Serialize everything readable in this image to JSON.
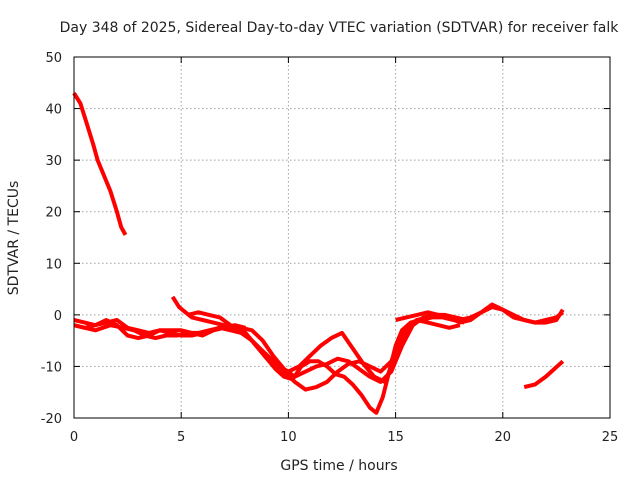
{
  "chart_data": {
    "type": "line",
    "title": "Day 348 of 2025, Sidereal Day-to-day VTEC variation (SDTVAR) for receiver falk",
    "xlabel": "GPS time / hours",
    "ylabel": "SDTVAR / TECUs",
    "xlim": [
      0,
      25
    ],
    "ylim": [
      -20,
      50
    ],
    "xticks": [
      "0",
      "5",
      "10",
      "15",
      "20",
      "25"
    ],
    "yticks": [
      "-20",
      "-10",
      "0",
      "10",
      "20",
      "30",
      "40",
      "50"
    ],
    "grid": true,
    "color": "#ff0000",
    "series": [
      {
        "name": "s1",
        "x": [
          0.0,
          0.3,
          0.6,
          0.9,
          1.1,
          1.4,
          1.7,
          2.0,
          2.2,
          2.4
        ],
        "y": [
          43,
          41,
          37,
          33,
          30,
          27,
          24,
          20,
          17,
          15.5
        ]
      },
      {
        "name": "s2",
        "x": [
          0.0,
          0.5,
          1.0,
          1.5,
          2.0,
          2.5,
          3.0,
          3.5,
          4.0,
          4.5,
          5.0,
          5.5,
          6.0,
          6.5,
          7.0,
          7.5,
          8.0
        ],
        "y": [
          -1,
          -1.5,
          -2,
          -1.5,
          -1,
          -2.5,
          -3,
          -3.5,
          -3,
          -3.5,
          -4,
          -4,
          -3.5,
          -3,
          -2.5,
          -2,
          -2.5
        ]
      },
      {
        "name": "s3",
        "x": [
          0.0,
          0.5,
          1.0,
          1.5,
          2.0,
          2.5,
          3.0,
          3.5,
          4.0,
          4.5,
          5.0,
          5.5,
          6.0,
          6.5,
          7.0
        ],
        "y": [
          -2,
          -2.5,
          -2,
          -1,
          -2,
          -4,
          -4.5,
          -4,
          -3,
          -3,
          -3,
          -3.5,
          -4,
          -3,
          -2
        ]
      },
      {
        "name": "s4",
        "x": [
          0.0,
          0.5,
          1.0,
          1.7,
          2.3,
          2.8,
          3.3,
          3.8,
          4.3,
          4.8,
          5.3,
          5.8,
          6.3,
          6.8,
          7.3,
          7.8,
          8.3,
          8.8,
          9.3,
          9.8,
          10.3,
          10.8,
          11.3,
          11.8,
          12.3,
          12.8,
          13.3,
          13.8,
          14.3,
          14.8,
          15.2,
          15.6,
          16.0,
          16.5,
          17.0,
          17.5,
          18.0
        ],
        "y": [
          -2,
          -2.5,
          -3,
          -2,
          -2.5,
          -3,
          -4,
          -4.5,
          -4,
          -4,
          -3.5,
          -3.5,
          -3,
          -2.5,
          -3,
          -3.5,
          -5,
          -7,
          -9,
          -11,
          -13,
          -14.5,
          -14,
          -13,
          -11,
          -9.5,
          -9,
          -10,
          -11,
          -9,
          -5,
          -2,
          -1,
          -1.5,
          -2,
          -2.5,
          -2
        ]
      },
      {
        "name": "s5",
        "x": [
          4.6,
          4.9,
          5.2,
          5.5,
          6.0,
          6.5,
          7.0,
          7.4,
          7.8,
          8.2,
          8.6,
          9.0,
          9.4,
          9.8,
          10.2,
          10.6,
          11.0,
          11.4,
          11.8,
          12.2,
          12.6,
          13.0,
          13.4,
          13.8,
          14.1,
          14.4,
          14.7,
          15.0,
          15.3,
          15.7,
          16.2,
          16.7,
          17.2,
          17.7,
          18.2
        ],
        "y": [
          3.5,
          1.5,
          0.5,
          -0.5,
          -1,
          -1.5,
          -2,
          -2.5,
          -3,
          -4.5,
          -6.5,
          -8.5,
          -10.5,
          -12,
          -12.5,
          -10,
          -9,
          -9,
          -10,
          -11.5,
          -12,
          -13.5,
          -15.5,
          -18,
          -19,
          -16,
          -11,
          -6,
          -3,
          -1.5,
          -1,
          -0.5,
          -0.5,
          -1,
          -1.5
        ]
      },
      {
        "name": "s6",
        "x": [
          5.3,
          5.8,
          6.3,
          6.8,
          7.3,
          7.8,
          8.3,
          8.8,
          9.3,
          9.8,
          10.3,
          10.8,
          11.3,
          11.8,
          12.3,
          12.8,
          13.3,
          13.8,
          14.3,
          14.8,
          15.3,
          15.8,
          16.3,
          16.8,
          17.3,
          17.8,
          18.3
        ],
        "y": [
          0,
          0.5,
          0,
          -0.5,
          -2,
          -2.5,
          -3,
          -5,
          -8,
          -10.5,
          -12,
          -11,
          -10,
          -9.5,
          -8.5,
          -9,
          -10.5,
          -12,
          -13,
          -11,
          -6,
          -2,
          -0.5,
          0,
          0,
          -0.5,
          -1
        ]
      },
      {
        "name": "s7",
        "x": [
          7.5,
          8.0,
          8.5,
          9.0,
          9.5,
          10.0,
          10.5,
          11.0,
          11.5,
          12.0,
          12.5,
          13.0,
          13.5,
          14.0,
          14.5,
          15.0,
          15.5,
          16.0,
          16.5,
          17.0,
          17.5,
          18.0,
          18.5,
          19.0,
          19.5,
          20.0,
          20.5,
          21.0,
          21.5,
          22.0,
          22.5,
          22.8
        ],
        "y": [
          -2,
          -3.5,
          -6,
          -8.5,
          -10,
          -11,
          -10,
          -8,
          -6,
          -4.5,
          -3.5,
          -6.5,
          -9.5,
          -12,
          -13,
          -8,
          -3,
          -1,
          -0.5,
          0,
          -0.5,
          -1.5,
          -1,
          0.5,
          2,
          1,
          -0.5,
          -1,
          -1.5,
          -1,
          -0.5,
          0.5
        ]
      },
      {
        "name": "s8",
        "x": [
          15.0,
          15.5,
          16.0,
          16.5,
          17.0,
          17.5,
          18.0,
          18.5,
          19.0,
          19.5,
          20.0,
          20.5,
          21.0,
          21.5,
          22.0,
          22.5,
          22.8
        ],
        "y": [
          -1,
          -0.5,
          0,
          0.5,
          0,
          -0.5,
          -1,
          -0.5,
          0.5,
          1.5,
          1,
          0,
          -1,
          -1.5,
          -1.5,
          -1,
          1
        ]
      },
      {
        "name": "s9",
        "x": [
          21.0,
          21.5,
          22.0,
          22.4,
          22.8
        ],
        "y": [
          -14,
          -13.5,
          -12,
          -10.5,
          -9
        ]
      }
    ]
  }
}
